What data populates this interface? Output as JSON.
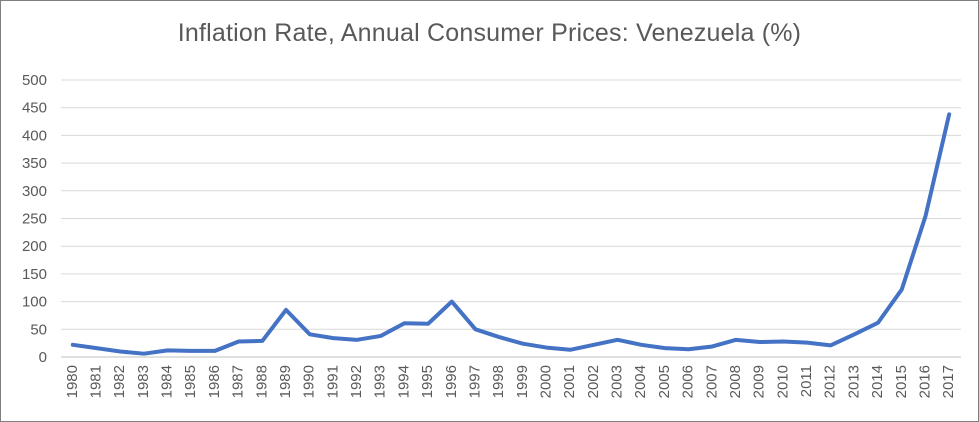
{
  "chart_data": {
    "type": "line",
    "title": "Inflation Rate, Annual Consumer Prices: Venezuela (%)",
    "xlabel": "",
    "ylabel": "",
    "ylim": [
      0,
      500
    ],
    "yticks": [
      0,
      50,
      100,
      150,
      200,
      250,
      300,
      350,
      400,
      450,
      500
    ],
    "grid": true,
    "legend": "none",
    "line_color": "#4472c4",
    "categories": [
      "1980",
      "1981",
      "1982",
      "1983",
      "1984",
      "1985",
      "1986",
      "1987",
      "1988",
      "1989",
      "1990",
      "1991",
      "1992",
      "1993",
      "1994",
      "1995",
      "1996",
      "1997",
      "1998",
      "1999",
      "2000",
      "2001",
      "2002",
      "2003",
      "2004",
      "2005",
      "2006",
      "2007",
      "2008",
      "2009",
      "2010",
      "2011",
      "2012",
      "2013",
      "2014",
      "2015",
      "2016",
      "2017"
    ],
    "series": [
      {
        "values": [
          22,
          16,
          10,
          6,
          12,
          11,
          11,
          28,
          29,
          85,
          41,
          34,
          31,
          38,
          61,
          60,
          100,
          50,
          36,
          24,
          17,
          13,
          22,
          31,
          22,
          16,
          14,
          19,
          31,
          27,
          28,
          26,
          21,
          41,
          62,
          122,
          254,
          438
        ]
      }
    ]
  }
}
